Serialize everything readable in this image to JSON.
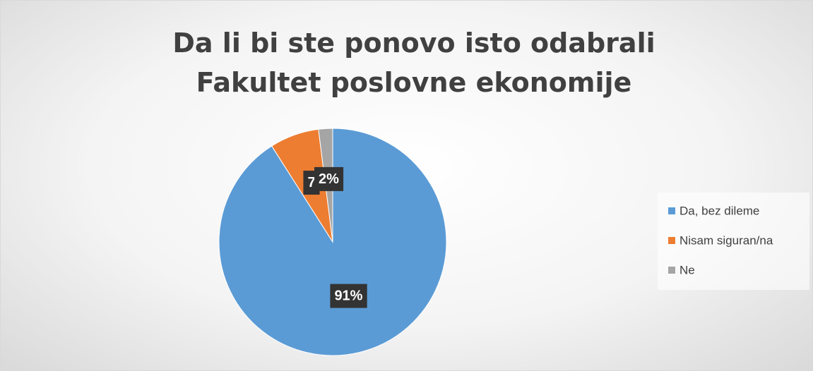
{
  "chart_data": {
    "type": "pie",
    "title": "Da li bi ste ponovo isto odabrali Fakultet poslovne ekonomije",
    "categories": [
      "Da, bez dileme",
      "Nisam siguran/na",
      "Ne"
    ],
    "values": [
      91,
      7,
      2
    ],
    "value_labels": [
      "91%",
      "7",
      "2%"
    ],
    "colors": [
      "#5b9bd5",
      "#ed7d31",
      "#a5a5a5"
    ],
    "legend": "right"
  }
}
